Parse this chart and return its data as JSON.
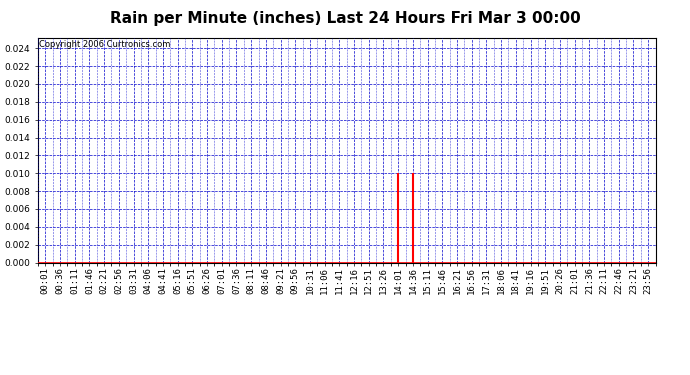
{
  "title": "Rain per Minute (inches) Last 24 Hours Fri Mar 3 00:00",
  "copyright": "Copyright 2006 Curtronics.com",
  "ylim": [
    0.0,
    0.0252
  ],
  "yticks": [
    0.0,
    0.002,
    0.004,
    0.006,
    0.008,
    0.01,
    0.012,
    0.014,
    0.016,
    0.018,
    0.02,
    0.022,
    0.024
  ],
  "x_labels": [
    "00:01",
    "00:36",
    "01:11",
    "01:46",
    "02:21",
    "02:56",
    "03:31",
    "04:06",
    "04:41",
    "05:16",
    "05:51",
    "06:26",
    "07:01",
    "07:36",
    "08:11",
    "08:46",
    "09:21",
    "09:56",
    "10:31",
    "11:06",
    "11:41",
    "12:16",
    "12:51",
    "13:26",
    "14:01",
    "14:36",
    "15:11",
    "15:46",
    "16:21",
    "16:56",
    "17:31",
    "18:06",
    "18:41",
    "19:16",
    "19:51",
    "20:26",
    "21:01",
    "21:36",
    "22:11",
    "22:46",
    "23:21",
    "23:56"
  ],
  "spike_indices": [
    24,
    25
  ],
  "spike_values": [
    0.01,
    0.01
  ],
  "line_color": "#ff0000",
  "grid_color": "#0000cc",
  "background_color": "#ffffff",
  "title_fontsize": 11,
  "copyright_fontsize": 6,
  "tick_fontsize": 6.5,
  "figwidth": 6.9,
  "figheight": 3.75
}
